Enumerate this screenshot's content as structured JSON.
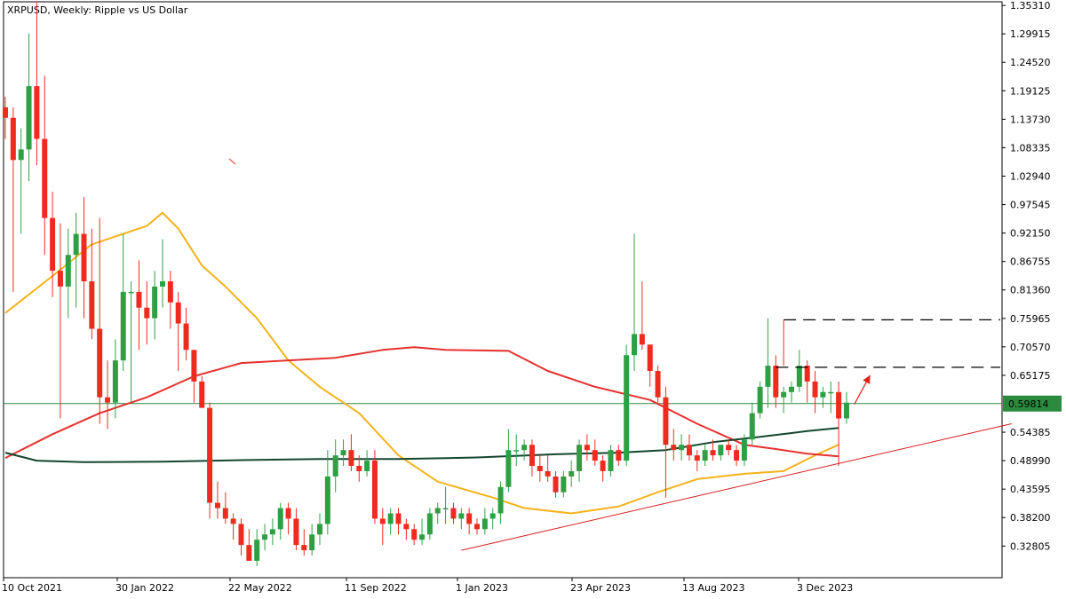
{
  "title": "XRPUSD, Weekly:  Ripple vs US Dollar",
  "price_label": "0.59814",
  "colors": {
    "bull": "#2ea043",
    "bear": "#ef2b20",
    "ma_fast": "#f5b21b",
    "ma_mid": "#e5312e",
    "ma_slow": "#14452f",
    "current_line": "#2a8a3e",
    "trendline": "#d81e1e",
    "dashed": "#000000",
    "arrow": "#e0201a"
  },
  "chart_data": {
    "type": "candlestick",
    "title": "XRPUSD, Weekly:  Ripple vs US Dollar",
    "symbol": "XRPUSD",
    "timeframe": "Weekly",
    "ylim": [
      0.268,
      1.36
    ],
    "y_ticks": [
      "1.35310",
      "1.29915",
      "1.24520",
      "1.19125",
      "1.13730",
      "1.08335",
      "1.02940",
      "0.97545",
      "0.92150",
      "0.86755",
      "0.81360",
      "0.75965",
      "0.70570",
      "0.65175",
      "0.59814",
      "0.54385",
      "0.48990",
      "0.43595",
      "0.38200",
      "0.32805"
    ],
    "x_ticks": [
      "10 Oct 2021",
      "30 Jan 2022",
      "22 May 2022",
      "11 Sep 2022",
      "1 Jan 2023",
      "23 Apr 2023",
      "13 Aug 2023",
      "3 Dec 2023"
    ],
    "current_price": 0.59814,
    "candles": [
      [
        1.16,
        1.18,
        1.1,
        1.14
      ],
      [
        1.14,
        1.16,
        0.81,
        1.06
      ],
      [
        1.06,
        1.12,
        0.92,
        1.08
      ],
      [
        1.08,
        1.3,
        1.02,
        1.2
      ],
      [
        1.2,
        1.36,
        1.05,
        1.1
      ],
      [
        1.1,
        1.22,
        0.88,
        0.95
      ],
      [
        0.95,
        1.0,
        0.8,
        0.85
      ],
      [
        0.85,
        0.94,
        0.57,
        0.82
      ],
      [
        0.82,
        0.93,
        0.76,
        0.88
      ],
      [
        0.88,
        0.96,
        0.78,
        0.92
      ],
      [
        0.92,
        0.99,
        0.76,
        0.83
      ],
      [
        0.83,
        0.93,
        0.72,
        0.74
      ],
      [
        0.74,
        0.95,
        0.56,
        0.61
      ],
      [
        0.61,
        0.68,
        0.55,
        0.6
      ],
      [
        0.6,
        0.72,
        0.57,
        0.68
      ],
      [
        0.68,
        0.92,
        0.66,
        0.81
      ],
      [
        0.81,
        0.83,
        0.6,
        0.81
      ],
      [
        0.81,
        0.87,
        0.7,
        0.78
      ],
      [
        0.78,
        0.83,
        0.71,
        0.76
      ],
      [
        0.76,
        0.85,
        0.72,
        0.82
      ],
      [
        0.82,
        0.91,
        0.78,
        0.83
      ],
      [
        0.83,
        0.85,
        0.74,
        0.79
      ],
      [
        0.79,
        0.81,
        0.66,
        0.75
      ],
      [
        0.75,
        0.78,
        0.68,
        0.7
      ],
      [
        0.7,
        0.7,
        0.6,
        0.64
      ],
      [
        0.64,
        0.65,
        0.6,
        0.59
      ],
      [
        0.59,
        0.6,
        0.38,
        0.41
      ],
      [
        0.41,
        0.45,
        0.38,
        0.4
      ],
      [
        0.4,
        0.43,
        0.37,
        0.38
      ],
      [
        0.38,
        0.39,
        0.34,
        0.37
      ],
      [
        0.37,
        0.38,
        0.31,
        0.33
      ],
      [
        0.33,
        0.36,
        0.3,
        0.3
      ],
      [
        0.3,
        0.36,
        0.29,
        0.34
      ],
      [
        0.34,
        0.37,
        0.32,
        0.35
      ],
      [
        0.35,
        0.38,
        0.33,
        0.36
      ],
      [
        0.36,
        0.41,
        0.34,
        0.4
      ],
      [
        0.4,
        0.41,
        0.35,
        0.38
      ],
      [
        0.38,
        0.4,
        0.32,
        0.33
      ],
      [
        0.33,
        0.36,
        0.31,
        0.32
      ],
      [
        0.32,
        0.37,
        0.31,
        0.35
      ],
      [
        0.35,
        0.39,
        0.33,
        0.37
      ],
      [
        0.37,
        0.51,
        0.35,
        0.46
      ],
      [
        0.46,
        0.53,
        0.43,
        0.5
      ],
      [
        0.5,
        0.53,
        0.48,
        0.51
      ],
      [
        0.51,
        0.54,
        0.47,
        0.48
      ],
      [
        0.48,
        0.5,
        0.45,
        0.47
      ],
      [
        0.47,
        0.51,
        0.46,
        0.49
      ],
      [
        0.49,
        0.51,
        0.37,
        0.38
      ],
      [
        0.38,
        0.4,
        0.33,
        0.37
      ],
      [
        0.37,
        0.4,
        0.35,
        0.39
      ],
      [
        0.39,
        0.4,
        0.35,
        0.37
      ],
      [
        0.37,
        0.38,
        0.34,
        0.36
      ],
      [
        0.36,
        0.37,
        0.33,
        0.34
      ],
      [
        0.34,
        0.38,
        0.33,
        0.35
      ],
      [
        0.35,
        0.4,
        0.34,
        0.39
      ],
      [
        0.39,
        0.41,
        0.37,
        0.4
      ],
      [
        0.4,
        0.44,
        0.37,
        0.4
      ],
      [
        0.4,
        0.41,
        0.37,
        0.38
      ],
      [
        0.38,
        0.4,
        0.36,
        0.39
      ],
      [
        0.39,
        0.4,
        0.35,
        0.37
      ],
      [
        0.37,
        0.38,
        0.35,
        0.36
      ],
      [
        0.36,
        0.4,
        0.35,
        0.38
      ],
      [
        0.38,
        0.4,
        0.36,
        0.39
      ],
      [
        0.39,
        0.45,
        0.37,
        0.44
      ],
      [
        0.44,
        0.55,
        0.43,
        0.51
      ],
      [
        0.51,
        0.54,
        0.48,
        0.51
      ],
      [
        0.51,
        0.53,
        0.49,
        0.52
      ],
      [
        0.52,
        0.53,
        0.46,
        0.48
      ],
      [
        0.48,
        0.5,
        0.45,
        0.47
      ],
      [
        0.47,
        0.5,
        0.45,
        0.46
      ],
      [
        0.46,
        0.47,
        0.42,
        0.43
      ],
      [
        0.43,
        0.47,
        0.42,
        0.46
      ],
      [
        0.46,
        0.49,
        0.44,
        0.47
      ],
      [
        0.47,
        0.53,
        0.45,
        0.52
      ],
      [
        0.52,
        0.54,
        0.49,
        0.51
      ],
      [
        0.51,
        0.53,
        0.48,
        0.49
      ],
      [
        0.49,
        0.5,
        0.45,
        0.47
      ],
      [
        0.47,
        0.52,
        0.46,
        0.51
      ],
      [
        0.51,
        0.52,
        0.48,
        0.49
      ],
      [
        0.49,
        0.71,
        0.48,
        0.69
      ],
      [
        0.69,
        0.92,
        0.66,
        0.73
      ],
      [
        0.73,
        0.83,
        0.7,
        0.71
      ],
      [
        0.71,
        0.71,
        0.63,
        0.66
      ],
      [
        0.66,
        0.67,
        0.6,
        0.61
      ],
      [
        0.61,
        0.63,
        0.42,
        0.52
      ],
      [
        0.52,
        0.55,
        0.49,
        0.51
      ],
      [
        0.51,
        0.54,
        0.49,
        0.52
      ],
      [
        0.52,
        0.54,
        0.49,
        0.5
      ],
      [
        0.5,
        0.51,
        0.47,
        0.49
      ],
      [
        0.49,
        0.52,
        0.48,
        0.51
      ],
      [
        0.51,
        0.53,
        0.49,
        0.5
      ],
      [
        0.5,
        0.52,
        0.49,
        0.52
      ],
      [
        0.52,
        0.53,
        0.5,
        0.51
      ],
      [
        0.51,
        0.52,
        0.48,
        0.49
      ],
      [
        0.49,
        0.54,
        0.48,
        0.53
      ],
      [
        0.53,
        0.6,
        0.52,
        0.58
      ],
      [
        0.58,
        0.64,
        0.57,
        0.63
      ],
      [
        0.63,
        0.76,
        0.59,
        0.67
      ],
      [
        0.67,
        0.69,
        0.59,
        0.61
      ],
      [
        0.61,
        0.63,
        0.58,
        0.62
      ],
      [
        0.62,
        0.64,
        0.6,
        0.63
      ],
      [
        0.63,
        0.7,
        0.62,
        0.67
      ],
      [
        0.67,
        0.68,
        0.6,
        0.64
      ],
      [
        0.64,
        0.66,
        0.58,
        0.61
      ],
      [
        0.61,
        0.63,
        0.59,
        0.62
      ],
      [
        0.62,
        0.64,
        0.58,
        0.62
      ],
      [
        0.62,
        0.64,
        0.48,
        0.57
      ],
      [
        0.57,
        0.62,
        0.56,
        0.6
      ]
    ],
    "indicators": [
      {
        "name": "fast MA",
        "color": "#f5b21b",
        "points": [
          [
            0,
            0.77
          ],
          [
            6,
            0.84
          ],
          [
            11,
            0.9
          ],
          [
            15,
            0.92
          ],
          [
            18,
            0.935
          ],
          [
            20,
            0.96
          ],
          [
            22,
            0.93
          ],
          [
            25,
            0.86
          ],
          [
            28,
            0.82
          ],
          [
            32,
            0.76
          ],
          [
            36,
            0.68
          ],
          [
            40,
            0.63
          ],
          [
            45,
            0.58
          ],
          [
            50,
            0.5
          ],
          [
            55,
            0.45
          ],
          [
            62,
            0.42
          ],
          [
            66,
            0.4
          ],
          [
            72,
            0.39
          ],
          [
            78,
            0.403
          ],
          [
            83,
            0.43
          ],
          [
            88,
            0.455
          ],
          [
            94,
            0.465
          ],
          [
            99,
            0.47
          ],
          [
            103,
            0.5
          ],
          [
            106,
            0.52
          ]
        ]
      },
      {
        "name": "mid MA",
        "color": "#e5312e",
        "points": [
          [
            0,
            0.495
          ],
          [
            6,
            0.54
          ],
          [
            12,
            0.58
          ],
          [
            18,
            0.61
          ],
          [
            24,
            0.65
          ],
          [
            30,
            0.675
          ],
          [
            36,
            0.68
          ],
          [
            42,
            0.685
          ],
          [
            48,
            0.7
          ],
          [
            52,
            0.705
          ],
          [
            56,
            0.7
          ],
          [
            64,
            0.698
          ],
          [
            69,
            0.66
          ],
          [
            75,
            0.63
          ],
          [
            82,
            0.605
          ],
          [
            88,
            0.56
          ],
          [
            94,
            0.52
          ],
          [
            98,
            0.512
          ],
          [
            102,
            0.503
          ],
          [
            106,
            0.498
          ]
        ]
      },
      {
        "name": "slow MA",
        "color": "#14452f",
        "points": [
          [
            0,
            0.505
          ],
          [
            4,
            0.49
          ],
          [
            10,
            0.487
          ],
          [
            20,
            0.488
          ],
          [
            30,
            0.491
          ],
          [
            40,
            0.493
          ],
          [
            50,
            0.493
          ],
          [
            60,
            0.496
          ],
          [
            70,
            0.502
          ],
          [
            78,
            0.505
          ],
          [
            84,
            0.51
          ],
          [
            90,
            0.525
          ],
          [
            96,
            0.535
          ],
          [
            102,
            0.546
          ],
          [
            106,
            0.552
          ]
        ]
      }
    ],
    "annotations": {
      "trendline": [
        [
          58,
          0.32
        ],
        [
          128,
          0.56
        ]
      ],
      "dashed_levels": [
        {
          "from": 99,
          "value": 0.757,
          "riser_from": 0.67
        },
        {
          "from": 98,
          "value": 0.667
        }
      ],
      "arrow": {
        "from": [
          108,
          0.597
        ],
        "to": [
          110,
          0.652
        ]
      }
    }
  }
}
